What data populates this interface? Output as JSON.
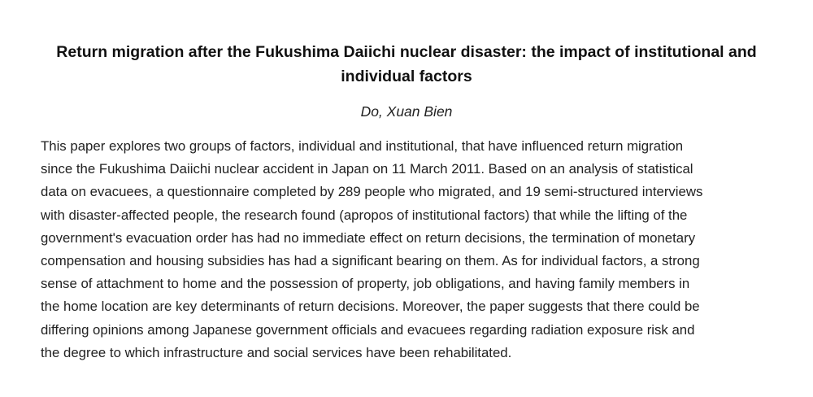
{
  "paper": {
    "title": "Return migration after the Fukushima Daiichi nuclear disaster: the impact of institutional and individual factors",
    "author": "Do, Xuan Bien",
    "abstract_lines": [
      "This paper explores two groups of factors, individual and institutional, that have influenced return migration",
      "since the Fukushima Daiichi nuclear accident in Japan on 11 March 2011. Based on an analysis of statistical",
      "data on evacuees, a questionnaire completed by 289 people who migrated, and 19 semi-structured interviews",
      "with disaster-affected people, the research found (apropos of institutional factors) that while the lifting of the",
      "government's evacuation order has had no immediate effect on return decisions, the termination of monetary",
      "compensation and housing subsidies has had a significant bearing on them. As for individual factors, a strong",
      "sense of attachment to home and the possession of property, job obligations, and having family members in",
      "the home location are key determinants of return decisions. Moreover, the paper suggests that there could be",
      "differing opinions among Japanese government officials and evacuees regarding radiation exposure risk and",
      "the degree to which infrastructure and social services have been rehabilitated."
    ]
  }
}
